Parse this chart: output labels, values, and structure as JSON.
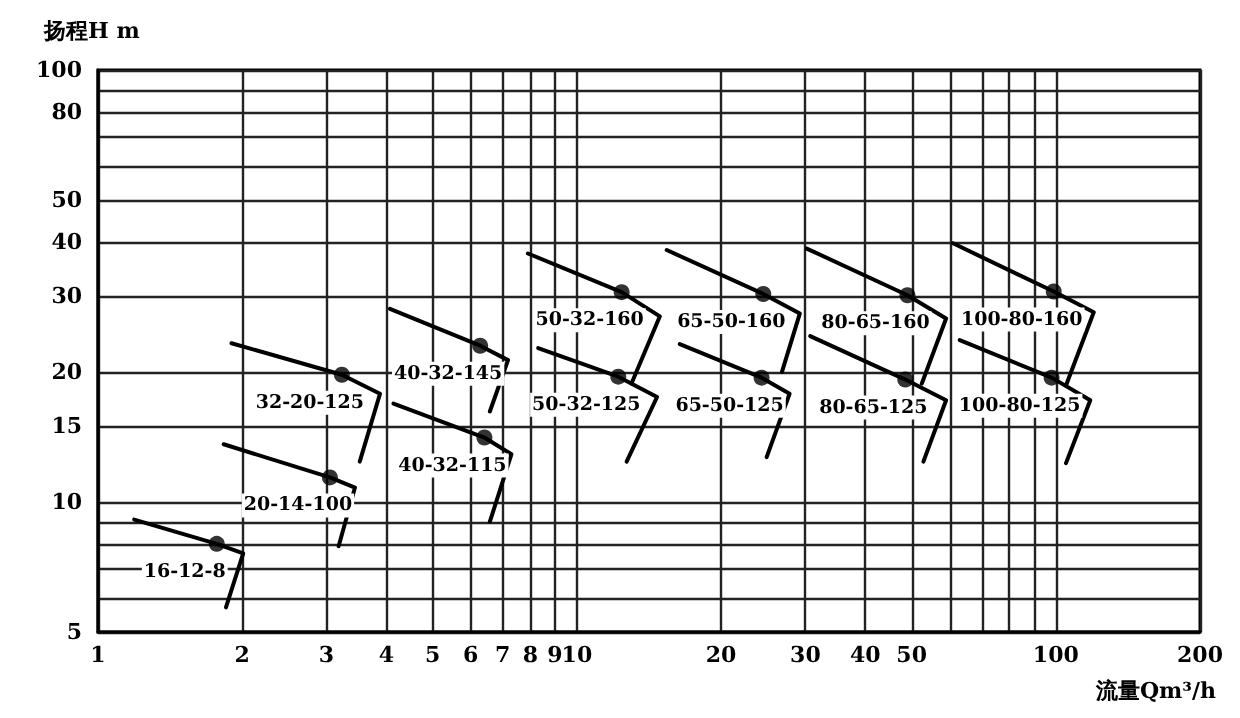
{
  "chart_data": {
    "type": "line",
    "xlabel": "流量Qm³/h",
    "ylabel": "扬程H m",
    "log": "xy",
    "xlim": [
      1,
      200
    ],
    "ylim": [
      5,
      100
    ],
    "xticks": [
      1,
      2,
      3,
      4,
      5,
      6,
      7,
      8,
      9,
      10,
      20,
      30,
      40,
      50,
      {
        "value": 60,
        "label": null
      },
      {
        "value": 70,
        "label": null
      },
      {
        "value": 80,
        "label": null
      },
      {
        "value": 90,
        "label": null
      },
      100,
      200
    ],
    "yticks": [
      5,
      {
        "value": 6,
        "label": null
      },
      {
        "value": 7,
        "label": null
      },
      {
        "value": 8,
        "label": null
      },
      {
        "value": 9,
        "label": null
      },
      10,
      15,
      20,
      30,
      40,
      50,
      {
        "value": 60,
        "label": null
      },
      {
        "value": 70,
        "label": null
      },
      80,
      {
        "value": 90,
        "label": null
      },
      100
    ],
    "grid": true,
    "legend": false,
    "line_style": "solid",
    "marker": "none",
    "series": [
      {
        "name": "16-12-8",
        "color": "#000000",
        "x": [
          1.19,
          1.77,
          2.01,
          1.85
        ],
        "values": [
          9.1,
          8.0,
          7.6,
          5.7
        ]
      },
      {
        "name": "20-14-100",
        "color": "#000000",
        "x": [
          1.83,
          3.05,
          3.44,
          3.18
        ],
        "values": [
          13.6,
          11.4,
          10.8,
          7.9
        ]
      },
      {
        "name": "32-20-125",
        "color": "#000000",
        "x": [
          1.9,
          3.23,
          3.88,
          3.52
        ],
        "values": [
          23.3,
          19.7,
          17.8,
          12.4
        ]
      },
      {
        "name": "40-32-145",
        "color": "#000000",
        "x": [
          4.07,
          6.28,
          7.18,
          6.58
        ],
        "values": [
          28,
          23,
          21.3,
          16.2
        ]
      },
      {
        "name": "40-32-115",
        "color": "#000000",
        "x": [
          4.14,
          6.41,
          7.3,
          6.58
        ],
        "values": [
          16.9,
          14.1,
          12.9,
          9
        ]
      },
      {
        "name": "50-32-160",
        "color": "#000000",
        "x": [
          7.9,
          12.4,
          14.9,
          13
        ],
        "values": [
          37.6,
          30.6,
          26.9,
          18.8
        ]
      },
      {
        "name": "50-32-125",
        "color": "#000000",
        "x": [
          8.3,
          12.2,
          14.7,
          12.7
        ],
        "values": [
          22.7,
          19.5,
          17.5,
          12.4
        ]
      },
      {
        "name": "65-50-160",
        "color": "#000000",
        "x": [
          15.4,
          24.5,
          29.2,
          26.8
        ],
        "values": [
          38.3,
          30.3,
          27.3,
          20
        ]
      },
      {
        "name": "65-50-125",
        "color": "#000000",
        "x": [
          16.4,
          24.3,
          27.8,
          24.9
        ],
        "values": [
          23.2,
          19.4,
          17.8,
          12.7
        ]
      },
      {
        "name": "80-65-160",
        "color": "#000000",
        "x": [
          30.2,
          49,
          59,
          52.5
        ],
        "values": [
          38.6,
          30.1,
          26.6,
          18.8
        ]
      },
      {
        "name": "80-65-125",
        "color": "#000000",
        "x": [
          30.7,
          48.5,
          59,
          52.9
        ],
        "values": [
          24.2,
          19.2,
          17.2,
          12.4
        ]
      },
      {
        "name": "100-80-160",
        "color": "#000000",
        "x": [
          61,
          99,
          120,
          105
        ],
        "values": [
          39.7,
          30.7,
          27.5,
          18.6
        ]
      },
      {
        "name": "100-80-125",
        "color": "#000000",
        "x": [
          63,
          98,
          118,
          105
        ],
        "values": [
          23.7,
          19.4,
          17.2,
          12.3
        ]
      },
      {
        "type": "scatter",
        "marker": "circle",
        "color": "#000000",
        "x": [
          1.77,
          3.05,
          3.23,
          6.28,
          6.41,
          12.4,
          12.2,
          24.5,
          24.3,
          49,
          48.5,
          99,
          98
        ],
        "values": [
          8.0,
          11.4,
          19.7,
          23,
          14.1,
          30.6,
          19.5,
          30.3,
          19.4,
          30.1,
          19.2,
          30.7,
          19.4
        ]
      }
    ]
  }
}
